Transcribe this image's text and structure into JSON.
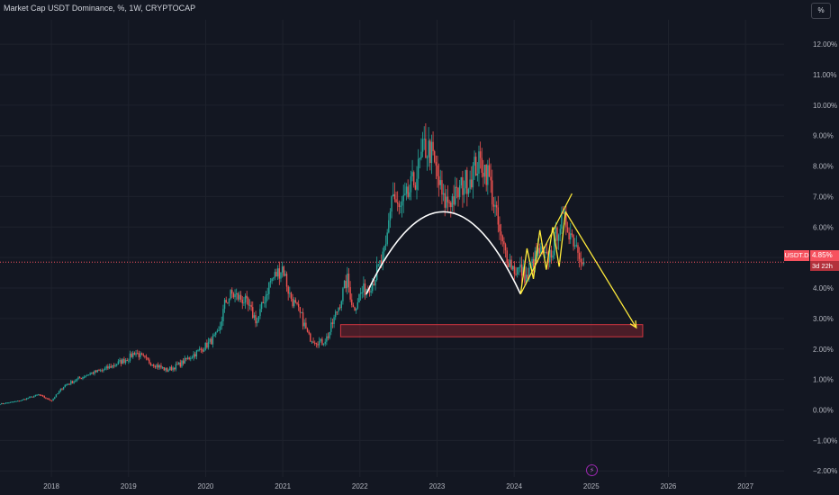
{
  "header": {
    "title": "Market Cap USDT Dominance, %, 1W, CRYPTOCAP"
  },
  "toolbar": {
    "scale_label": "%"
  },
  "price_label": {
    "symbol": "USDT.D",
    "value": "4.85%",
    "countdown": "3d 22h"
  },
  "icons": {
    "bolt": "lightning-icon"
  },
  "colors": {
    "background": "#131722",
    "grid": "#1e222d",
    "up": "#26a69a",
    "down": "#ef5350",
    "support_zone": "#b22833",
    "pattern": "#ffeb3b",
    "cup": "#ffffff",
    "last_price": "#f7525f"
  },
  "chart_data": {
    "type": "candlestick",
    "title": "Market Cap USDT Dominance, %, 1W, CRYPTOCAP",
    "x_axis": {
      "type": "time",
      "range": [
        "2017-05",
        "2027-07"
      ],
      "tick_labels": [
        "2018",
        "2019",
        "2020",
        "2021",
        "2022",
        "2023",
        "2024",
        "2025",
        "2026",
        "2027"
      ]
    },
    "y_axis": {
      "unit": "%",
      "range": [
        -2.2,
        12.8
      ],
      "tick_values": [
        12,
        11,
        10,
        9,
        8,
        7,
        6,
        5,
        4,
        3,
        2,
        1,
        0,
        -1,
        -2
      ],
      "tick_labels": [
        "12.00%",
        "11.00%",
        "10.00%",
        "9.00%",
        "8.00%",
        "7.00%",
        "6.00%",
        "5.00%",
        "4.00%",
        "3.00%",
        "2.00%",
        "1.00%",
        "0.00%",
        "−1.00%",
        "−2.00%"
      ]
    },
    "last_value": 4.85,
    "series": [
      {
        "style": "candles",
        "points": [
          [
            "2017-05",
            0.2
          ],
          [
            "2017-08",
            0.3
          ],
          [
            "2017-11",
            0.5
          ],
          [
            "2018-01",
            0.3
          ],
          [
            "2018-03",
            0.8
          ],
          [
            "2018-05",
            1.0
          ],
          [
            "2018-07",
            1.2
          ],
          [
            "2018-09",
            1.3
          ],
          [
            "2018-11",
            1.5
          ],
          [
            "2019-01",
            1.7
          ],
          [
            "2019-02",
            1.9
          ],
          [
            "2019-04",
            1.6
          ],
          [
            "2019-05",
            1.5
          ],
          [
            "2019-07",
            1.3
          ],
          [
            "2019-09",
            1.5
          ],
          [
            "2019-11",
            1.8
          ],
          [
            "2020-01",
            2.1
          ],
          [
            "2020-03",
            2.5
          ],
          [
            "2020-04",
            3.5
          ],
          [
            "2020-05",
            3.8
          ],
          [
            "2020-07",
            3.6
          ],
          [
            "2020-09",
            2.9
          ],
          [
            "2020-11",
            4.2
          ],
          [
            "2021-01",
            4.7
          ],
          [
            "2021-02",
            3.8
          ],
          [
            "2021-04",
            3.0
          ],
          [
            "2021-05",
            2.4
          ],
          [
            "2021-07",
            2.2
          ],
          [
            "2021-08",
            2.4
          ],
          [
            "2021-10",
            3.6
          ],
          [
            "2021-11",
            4.3
          ],
          [
            "2021-12",
            3.3
          ],
          [
            "2022-01",
            3.8
          ],
          [
            "2022-03",
            4.2
          ],
          [
            "2022-05",
            5.2
          ],
          [
            "2022-06",
            7.2
          ],
          [
            "2022-07",
            6.5
          ],
          [
            "2022-08",
            6.8
          ],
          [
            "2022-10",
            7.8
          ],
          [
            "2022-11",
            8.6
          ],
          [
            "2022-12",
            8.5
          ],
          [
            "2023-01",
            7.7
          ],
          [
            "2023-02",
            6.8
          ],
          [
            "2023-04",
            7.0
          ],
          [
            "2023-05",
            7.4
          ],
          [
            "2023-06",
            7.6
          ],
          [
            "2023-07",
            8.0
          ],
          [
            "2023-08",
            8.1
          ],
          [
            "2023-09",
            7.7
          ],
          [
            "2023-10",
            6.6
          ],
          [
            "2023-11",
            5.5
          ],
          [
            "2023-12",
            5.0
          ],
          [
            "2024-01",
            4.6
          ],
          [
            "2024-02",
            4.6
          ],
          [
            "2024-03",
            4.3
          ],
          [
            "2024-04",
            4.9
          ],
          [
            "2024-05",
            5.2
          ],
          [
            "2024-06",
            4.9
          ],
          [
            "2024-07",
            5.3
          ],
          [
            "2024-08",
            6.1
          ],
          [
            "2024-09",
            6.2
          ],
          [
            "2024-10",
            5.7
          ],
          [
            "2024-11",
            5.3
          ],
          [
            "2024-12",
            4.85
          ]
        ]
      }
    ],
    "annotations": [
      {
        "type": "arc",
        "color": "#ffffff",
        "from": [
          "2022-02",
          3.8
        ],
        "peak": [
          "2023-02",
          6.5
        ],
        "to": [
          "2024-02",
          3.8
        ]
      },
      {
        "type": "zone",
        "color": "#b22833",
        "from": [
          "2021-10",
          2.4
        ],
        "to": [
          "2025-09",
          2.8
        ]
      },
      {
        "type": "zigzag",
        "color": "#ffeb3b",
        "points": [
          [
            "2024-02",
            3.8
          ],
          [
            "2024-03",
            5.3
          ],
          [
            "2024-04",
            4.3
          ],
          [
            "2024-05",
            5.9
          ],
          [
            "2024-06",
            4.6
          ],
          [
            "2024-07",
            6.0
          ],
          [
            "2024-08",
            4.7
          ],
          [
            "2024-09",
            6.5
          ]
        ]
      },
      {
        "type": "trendline",
        "color": "#ffeb3b",
        "from": [
          "2024-02",
          3.8
        ],
        "to": [
          "2024-10",
          7.1
        ]
      },
      {
        "type": "arrow",
        "color": "#ffeb3b",
        "from": [
          "2024-09",
          6.5
        ],
        "to": [
          "2025-08",
          2.7
        ]
      }
    ]
  }
}
